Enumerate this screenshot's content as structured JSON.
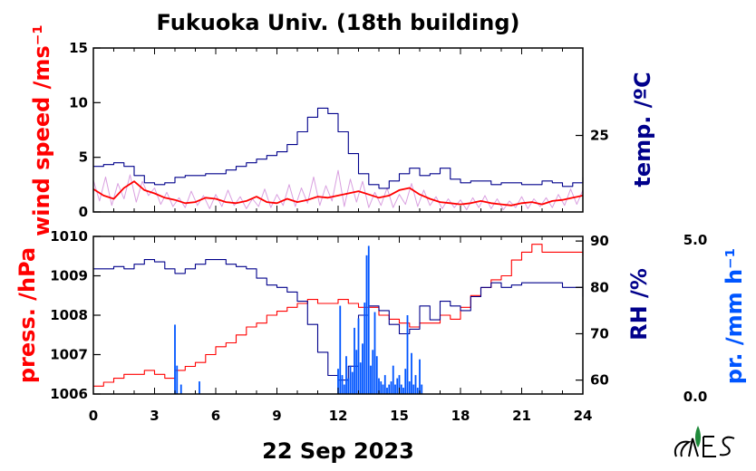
{
  "title": "Fukuoka Univ. (18th building)",
  "date_label": "22 Sep 2023",
  "colors": {
    "wind": "#ff0000",
    "wind_raw": "#d9a0e0",
    "temp": "#00008b",
    "pressure": "#ff0000",
    "rh": "#00008b",
    "precip": "#0055ff"
  },
  "chart_data": [
    {
      "type": "line",
      "name": "top-panel",
      "xlim": [
        0,
        24
      ],
      "left_axis": {
        "label": "wind speed /ms⁻¹",
        "ylim": [
          0,
          15
        ],
        "ticks": [
          "0",
          "5",
          "10",
          "15"
        ],
        "tick_values": [
          0,
          5,
          10,
          15
        ]
      },
      "right_axis": {
        "label": "temp. /ºC",
        "ylim": [
          20.8,
          29.8
        ],
        "ticks": [
          "25"
        ],
        "tick_values": [
          25
        ]
      },
      "series": [
        {
          "key": "wind_raw",
          "axis": "left",
          "color": "#d9a0e0",
          "x": [
            0,
            0.3,
            0.6,
            0.9,
            1.2,
            1.5,
            1.8,
            2.1,
            2.4,
            2.7,
            3,
            3.3,
            3.6,
            3.9,
            4.2,
            4.5,
            4.8,
            5.1,
            5.4,
            5.7,
            6,
            6.3,
            6.6,
            6.9,
            7.2,
            7.5,
            7.8,
            8.1,
            8.4,
            8.7,
            9,
            9.3,
            9.6,
            9.9,
            10.2,
            10.5,
            10.8,
            11.1,
            11.4,
            11.7,
            12,
            12.3,
            12.6,
            12.9,
            13.2,
            13.5,
            13.8,
            14.1,
            14.4,
            14.7,
            15,
            15.3,
            15.6,
            15.9,
            16.2,
            16.5,
            16.8,
            17.1,
            17.4,
            17.7,
            18,
            18.3,
            18.6,
            18.9,
            19.2,
            19.5,
            19.8,
            20.1,
            20.4,
            20.7,
            21,
            21.3,
            21.6,
            21.9,
            22.2,
            22.5,
            22.8,
            23.1,
            23.4,
            23.7,
            24
          ],
          "y": [
            2.9,
            1.0,
            3.2,
            0.6,
            2.6,
            1.2,
            3.4,
            0.9,
            2.8,
            1.5,
            2.2,
            0.7,
            1.8,
            0.5,
            1.3,
            0.4,
            1.9,
            0.6,
            1.5,
            0.3,
            1.6,
            0.5,
            2.0,
            0.6,
            1.4,
            0.3,
            1.2,
            0.5,
            2.1,
            0.4,
            1.6,
            0.6,
            2.5,
            0.5,
            2.2,
            0.8,
            3.2,
            0.6,
            2.4,
            1.0,
            3.8,
            0.5,
            3.0,
            0.9,
            2.8,
            0.4,
            1.8,
            0.6,
            2.2,
            0.4,
            1.6,
            0.7,
            2.6,
            0.5,
            2.0,
            0.6,
            1.4,
            0.3,
            1.2,
            0.4,
            1.1,
            0.2,
            1.3,
            0.4,
            1.5,
            0.3,
            1.2,
            0.2,
            1.0,
            0.4,
            1.4,
            0.3,
            1.2,
            0.5,
            1.3,
            0.4,
            1.6,
            0.6,
            2.1,
            0.7,
            2.0
          ]
        },
        {
          "key": "wind",
          "axis": "left",
          "color": "#ff0000",
          "x": [
            0,
            0.5,
            1,
            1.5,
            2,
            2.5,
            3,
            3.5,
            4,
            4.5,
            5,
            5.5,
            6,
            6.5,
            7,
            7.5,
            8,
            8.5,
            9,
            9.5,
            10,
            10.5,
            11,
            11.5,
            12,
            12.5,
            13,
            13.5,
            14,
            14.5,
            15,
            15.5,
            16,
            16.5,
            17,
            17.5,
            18,
            18.5,
            19,
            19.5,
            20,
            20.5,
            21,
            21.5,
            22,
            22.5,
            23,
            23.5,
            24
          ],
          "y": [
            2.1,
            1.5,
            1.2,
            2.2,
            2.8,
            2.0,
            1.7,
            1.3,
            1.1,
            0.8,
            0.9,
            1.3,
            1.2,
            0.9,
            0.8,
            1.0,
            1.4,
            0.9,
            0.8,
            1.2,
            0.9,
            1.1,
            1.4,
            1.3,
            1.5,
            1.7,
            1.9,
            1.6,
            1.3,
            1.5,
            2.0,
            2.2,
            1.6,
            1.2,
            0.9,
            0.8,
            0.7,
            0.8,
            1.0,
            0.8,
            0.7,
            0.6,
            0.8,
            0.9,
            0.7,
            1.0,
            1.1,
            1.3,
            1.5
          ]
        },
        {
          "key": "temp",
          "axis": "right",
          "color": "#00008b",
          "x": [
            0,
            0.5,
            1,
            1.5,
            2,
            2.5,
            3,
            3.5,
            4,
            4.5,
            5,
            5.5,
            6,
            6.5,
            7,
            7.5,
            8,
            8.5,
            9,
            9.5,
            10,
            10.5,
            11,
            11.5,
            12,
            12.5,
            13,
            13.5,
            14,
            14.5,
            15,
            15.5,
            16,
            16.5,
            17,
            17.5,
            18,
            18.5,
            19,
            19.5,
            20,
            20.5,
            21,
            21.5,
            22,
            22.5,
            23,
            23.5,
            24
          ],
          "y": [
            23.3,
            23.4,
            23.5,
            23.3,
            22.8,
            22.4,
            22.3,
            22.4,
            22.7,
            22.8,
            22.8,
            22.9,
            22.9,
            23.1,
            23.3,
            23.5,
            23.7,
            23.9,
            24.1,
            24.5,
            25.2,
            26.0,
            26.5,
            26.2,
            25.2,
            24.0,
            22.9,
            22.3,
            22.1,
            22.5,
            22.9,
            23.2,
            22.8,
            22.9,
            23.2,
            22.6,
            22.4,
            22.5,
            22.5,
            22.3,
            22.4,
            22.4,
            22.3,
            22.3,
            22.5,
            22.4,
            22.2,
            22.4,
            22.7
          ]
        }
      ]
    },
    {
      "type": "line",
      "name": "bottom-panel",
      "xlim": [
        0,
        24
      ],
      "xticks": [
        "0",
        "3",
        "6",
        "9",
        "12",
        "15",
        "18",
        "21",
        "24"
      ],
      "xtick_values": [
        0,
        3,
        6,
        9,
        12,
        15,
        18,
        21,
        24
      ],
      "left_axis": {
        "label": "press. /hPa",
        "ylim": [
          1006,
          1010
        ],
        "ticks": [
          "1006",
          "1007",
          "1008",
          "1009",
          "1010"
        ],
        "tick_values": [
          1006,
          1007,
          1008,
          1009,
          1010
        ]
      },
      "right_axis": {
        "label": "RH /%",
        "ylim": [
          57,
          91
        ],
        "ticks": [
          "60",
          "70",
          "80",
          "90"
        ],
        "tick_values": [
          60,
          70,
          80,
          90
        ]
      },
      "precip_axis": {
        "label": "pr. /mm h⁻¹",
        "ylim": [
          0,
          5
        ],
        "ticks": [
          "0.0",
          "5.0"
        ]
      },
      "series": [
        {
          "key": "pressure",
          "axis": "left",
          "color": "#ff0000",
          "x": [
            0,
            0.5,
            1,
            1.5,
            2,
            2.5,
            3,
            3.5,
            4,
            4.5,
            5,
            5.5,
            6,
            6.5,
            7,
            7.5,
            8,
            8.5,
            9,
            9.5,
            10,
            10.5,
            11,
            11.5,
            12,
            12.5,
            13,
            13.5,
            14,
            14.5,
            15,
            15.5,
            16,
            16.5,
            17,
            17.5,
            18,
            18.5,
            19,
            19.5,
            20,
            20.5,
            21,
            21.5,
            22,
            22.5,
            23,
            23.5,
            24
          ],
          "y": [
            1006.2,
            1006.3,
            1006.4,
            1006.5,
            1006.5,
            1006.6,
            1006.5,
            1006.4,
            1006.6,
            1006.7,
            1006.8,
            1007.0,
            1007.2,
            1007.3,
            1007.5,
            1007.7,
            1007.8,
            1008.0,
            1008.1,
            1008.2,
            1008.3,
            1008.4,
            1008.3,
            1008.3,
            1008.4,
            1008.3,
            1008.2,
            1008.2,
            1008.0,
            1007.9,
            1007.8,
            1007.7,
            1007.8,
            1007.8,
            1008.0,
            1007.9,
            1008.2,
            1008.5,
            1008.7,
            1008.9,
            1009.0,
            1009.4,
            1009.6,
            1009.8,
            1009.6,
            1009.6,
            1009.6,
            1009.6,
            1009.5
          ]
        },
        {
          "key": "rh",
          "axis": "right",
          "color": "#00008b",
          "x": [
            0,
            0.5,
            1,
            1.5,
            2,
            2.5,
            3,
            3.5,
            4,
            4.5,
            5,
            5.5,
            6,
            6.5,
            7,
            7.5,
            8,
            8.5,
            9,
            9.5,
            10,
            10.5,
            11,
            11.5,
            12,
            12.5,
            13,
            13.5,
            14,
            14.5,
            15,
            15.5,
            16,
            16.5,
            17,
            17.5,
            18,
            18.5,
            19,
            19.5,
            20,
            20.5,
            21,
            21.5,
            22,
            22.5,
            23,
            23.5,
            24
          ],
          "y": [
            84,
            84,
            84.5,
            84,
            85,
            86,
            85.5,
            84,
            83,
            84,
            85,
            86,
            86,
            85,
            84.5,
            84,
            82,
            80.5,
            80,
            79,
            77,
            72,
            66,
            61,
            60,
            63,
            74,
            76,
            75,
            72,
            70,
            71,
            76,
            73,
            77,
            76,
            75,
            78,
            80,
            81,
            80,
            80.5,
            81,
            81,
            81,
            81,
            80,
            80,
            78
          ]
        },
        {
          "key": "precip",
          "axis": "precip",
          "type": "bar",
          "color": "#0055ff",
          "x": [
            4.0,
            4.1,
            4.3,
            5.2,
            12.0,
            12.1,
            12.2,
            12.3,
            12.4,
            12.5,
            12.6,
            12.7,
            12.8,
            12.9,
            13.0,
            13.1,
            13.2,
            13.3,
            13.4,
            13.5,
            13.6,
            13.7,
            13.8,
            13.9,
            14.0,
            14.1,
            14.2,
            14.3,
            14.4,
            14.5,
            14.6,
            14.7,
            14.8,
            14.9,
            15.0,
            15.1,
            15.2,
            15.3,
            15.4,
            15.5,
            15.6,
            15.7,
            15.8,
            15.9,
            16.0,
            16.1
          ],
          "y": [
            2.2,
            0.9,
            0.3,
            0.4,
            0.8,
            2.8,
            0.6,
            0.3,
            1.2,
            0.5,
            0.9,
            0.7,
            2.1,
            1.4,
            2.4,
            1.0,
            1.6,
            2.9,
            4.4,
            4.7,
            0.9,
            1.4,
            2.6,
            1.2,
            0.5,
            0.4,
            0.3,
            0.6,
            0.2,
            0.3,
            0.4,
            0.9,
            0.3,
            0.5,
            0.6,
            0.3,
            0.2,
            0.8,
            2.5,
            0.4,
            1.3,
            0.3,
            0.6,
            0.2,
            1.1,
            0.3
          ]
        }
      ]
    }
  ]
}
